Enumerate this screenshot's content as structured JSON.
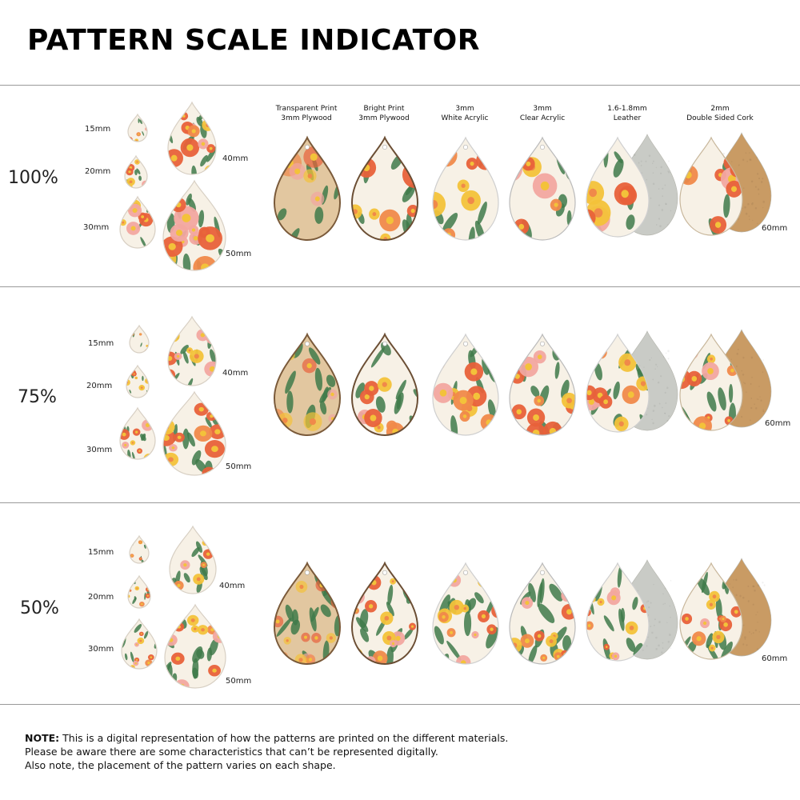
{
  "title": "PATTERN SCALE INDICATOR",
  "materials": [
    {
      "line1": "Transparent Print",
      "line2": "3mm Plywood"
    },
    {
      "line1": "Bright Print",
      "line2": "3mm Plywood"
    },
    {
      "line1": "3mm",
      "line2": "White Acrylic"
    },
    {
      "line1": "3mm",
      "line2": "Clear Acrylic"
    },
    {
      "line1": "1.6-1.8mm",
      "line2": "Leather"
    },
    {
      "line1": "2mm",
      "line2": "Double Sided Cork"
    }
  ],
  "sizes": [
    "15mm",
    "20mm",
    "30mm",
    "40mm",
    "50mm",
    "60mm"
  ],
  "rows": [
    {
      "scale": "100%"
    },
    {
      "scale": "75%"
    },
    {
      "scale": "50%"
    }
  ],
  "note": {
    "label": "NOTE:",
    "line1": " This is a digital representation of how the patterns are printed on the different materials.",
    "line2": "Please be aware there are some characteristics that can’t be represented digitally.",
    "line3": "Also note, the placement of the pattern varies on each shape."
  },
  "colors": {
    "coral": "#e8613a",
    "orange": "#f0894a",
    "yellow": "#f3c23a",
    "pink": "#f2a7a0",
    "green": "#3f7a4a",
    "cream": "#f7f1e6",
    "plywood": "#e2c7a0",
    "leather": "#c9cbc6",
    "cork": "#c99b64"
  }
}
